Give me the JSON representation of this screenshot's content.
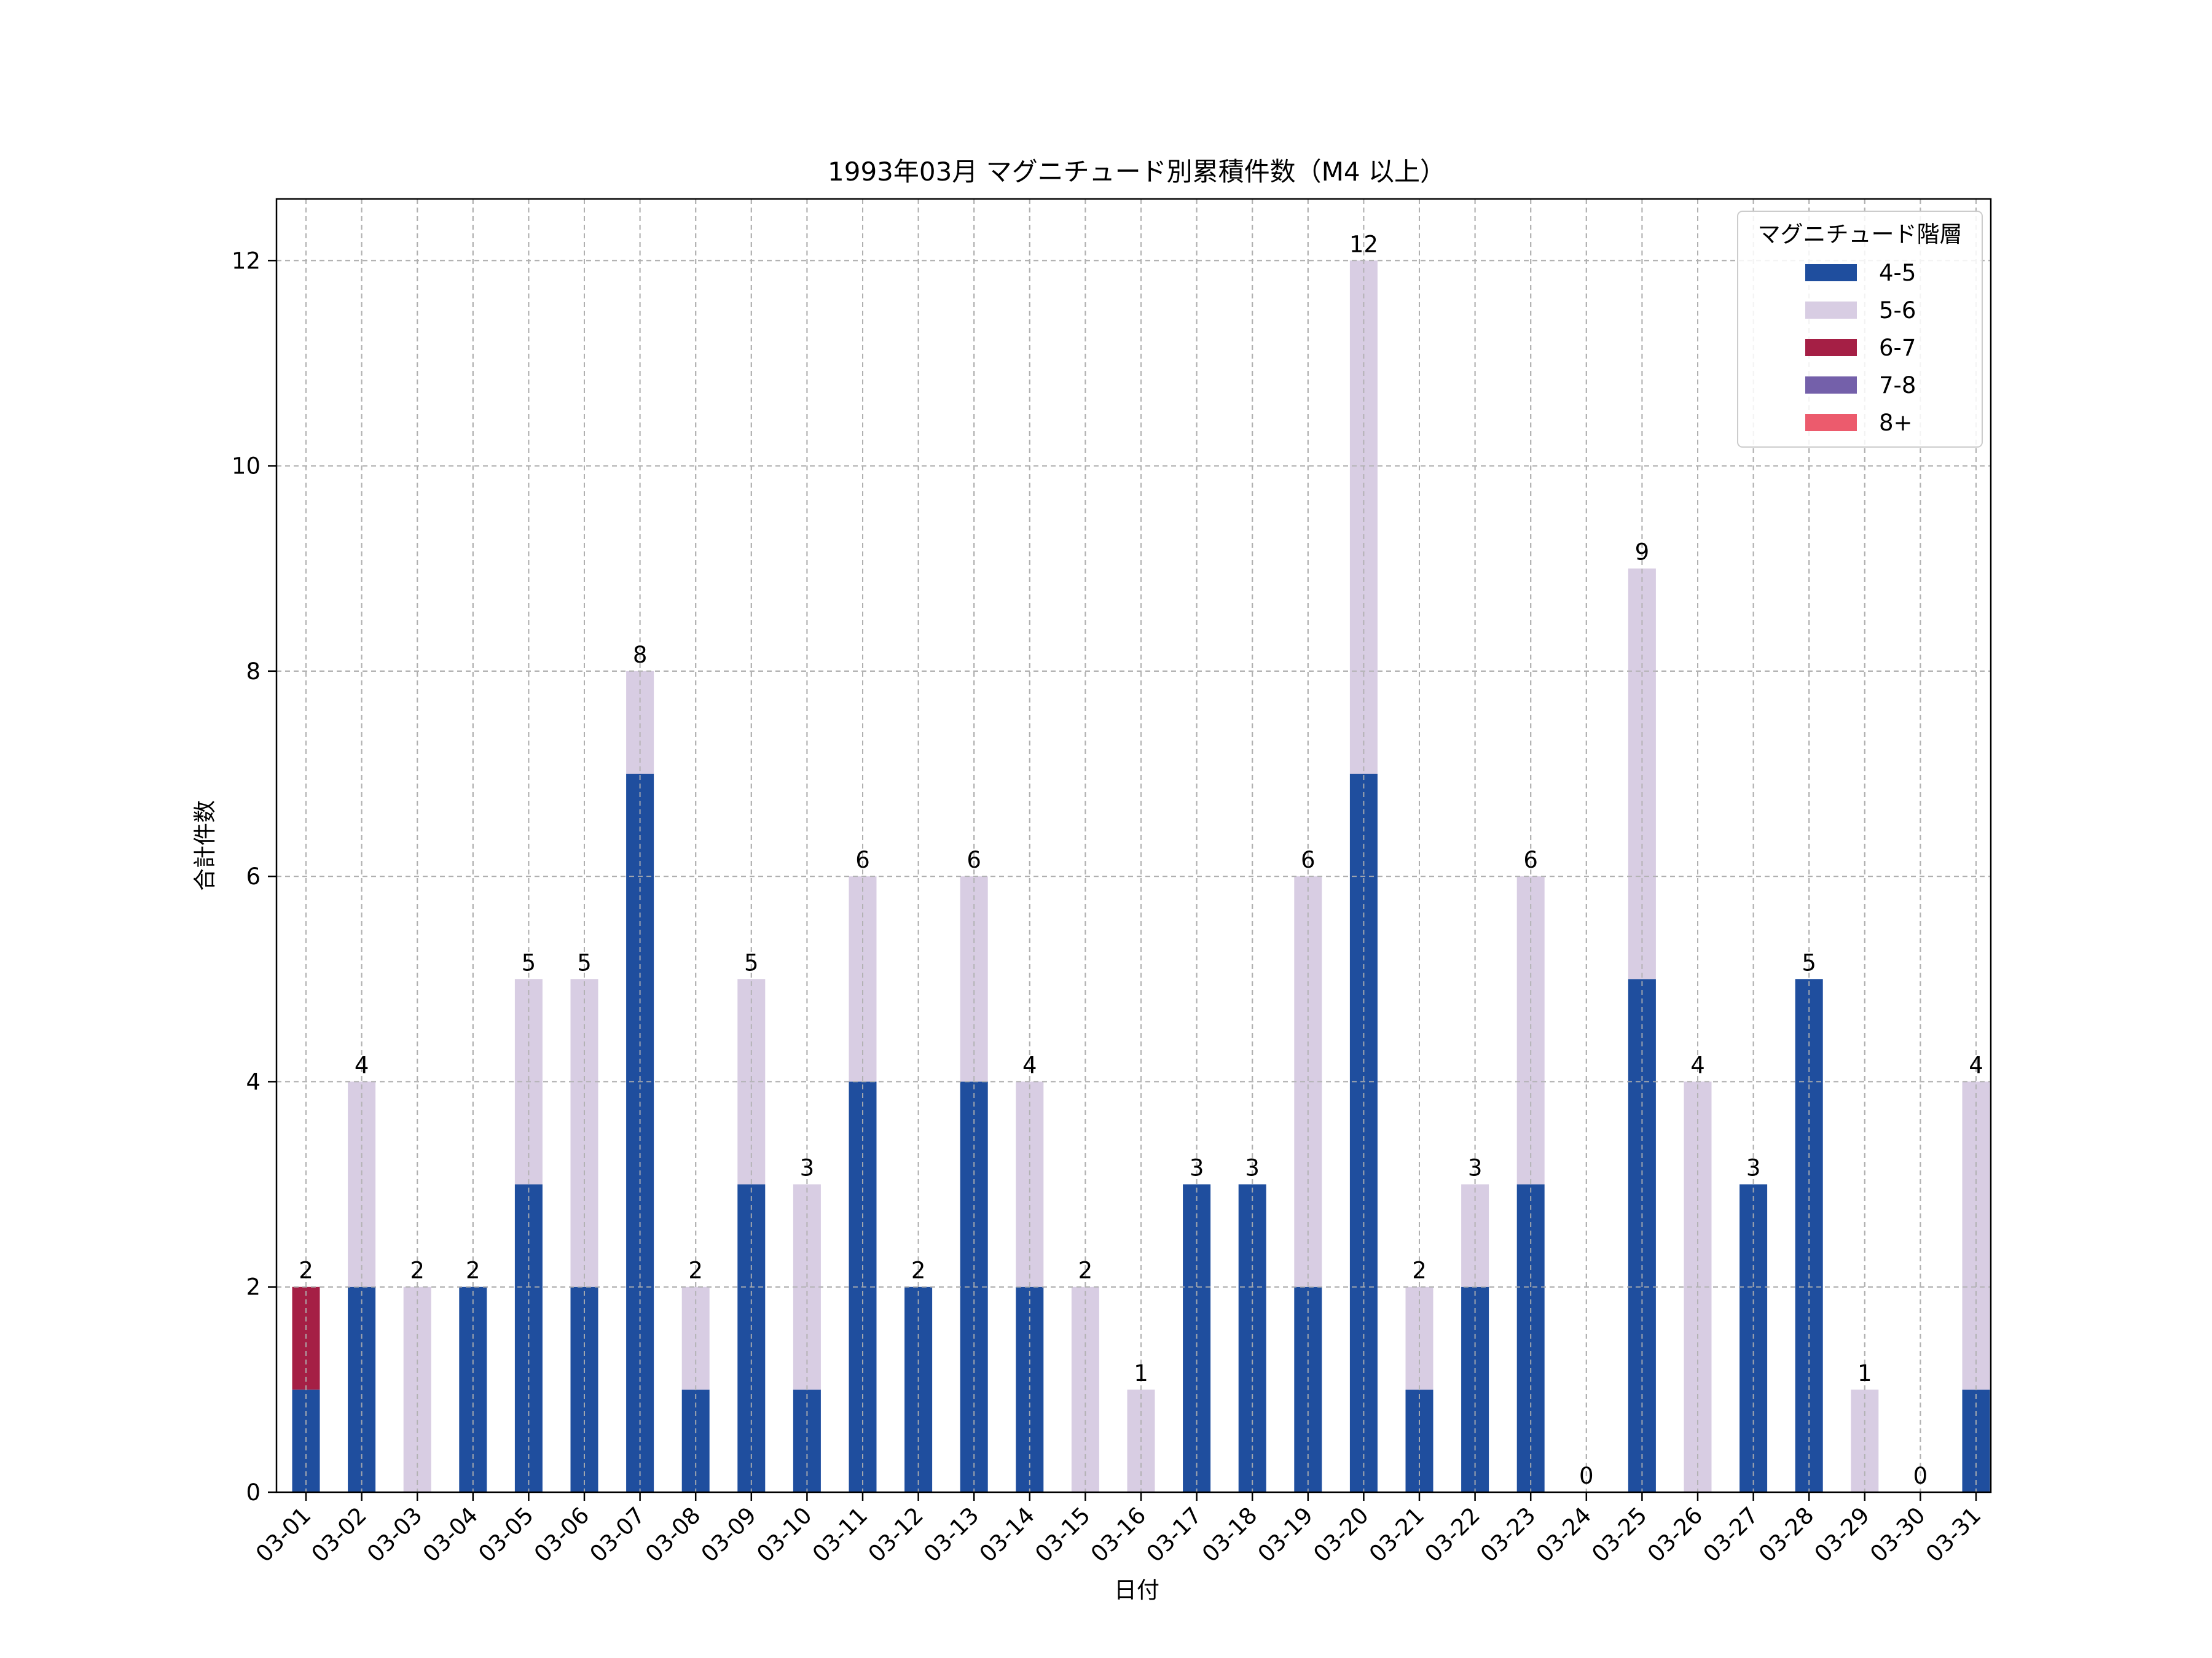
{
  "chart_data": {
    "type": "bar",
    "stacked": true,
    "title": "1993年03月 マグニチュード別累積件数（M4 以上）",
    "xlabel": "日付",
    "ylabel": "合計件数",
    "ylim": [
      0,
      12.6
    ],
    "yticks": [
      0,
      2,
      4,
      6,
      8,
      10,
      12
    ],
    "grid": true,
    "legend": {
      "title": "マグニチュード階層",
      "placement": "top-right"
    },
    "categories": [
      "03-01",
      "03-02",
      "03-03",
      "03-04",
      "03-05",
      "03-06",
      "03-07",
      "03-08",
      "03-09",
      "03-10",
      "03-11",
      "03-12",
      "03-13",
      "03-14",
      "03-15",
      "03-16",
      "03-17",
      "03-18",
      "03-19",
      "03-20",
      "03-21",
      "03-22",
      "03-23",
      "03-24",
      "03-25",
      "03-26",
      "03-27",
      "03-28",
      "03-29",
      "03-30",
      "03-31"
    ],
    "series": [
      {
        "name": "4-5",
        "color": "#1f4e9e",
        "values": [
          1,
          2,
          0,
          2,
          3,
          2,
          7,
          1,
          3,
          1,
          4,
          2,
          4,
          2,
          0,
          0,
          3,
          3,
          2,
          7,
          1,
          2,
          3,
          0,
          5,
          0,
          3,
          5,
          0,
          0,
          1
        ]
      },
      {
        "name": "5-6",
        "color": "#d8cde3",
        "values": [
          0,
          2,
          2,
          0,
          2,
          3,
          1,
          1,
          2,
          2,
          2,
          0,
          2,
          2,
          2,
          1,
          0,
          0,
          4,
          5,
          1,
          1,
          3,
          0,
          4,
          4,
          0,
          0,
          1,
          0,
          3
        ]
      },
      {
        "name": "6-7",
        "color": "#a51f45",
        "values": [
          1,
          0,
          0,
          0,
          0,
          0,
          0,
          0,
          0,
          0,
          0,
          0,
          0,
          0,
          0,
          0,
          0,
          0,
          0,
          0,
          0,
          0,
          0,
          0,
          0,
          0,
          0,
          0,
          0,
          0,
          0
        ]
      },
      {
        "name": "7-8",
        "color": "#7460aa",
        "values": [
          0,
          0,
          0,
          0,
          0,
          0,
          0,
          0,
          0,
          0,
          0,
          0,
          0,
          0,
          0,
          0,
          0,
          0,
          0,
          0,
          0,
          0,
          0,
          0,
          0,
          0,
          0,
          0,
          0,
          0,
          0
        ]
      },
      {
        "name": "8+",
        "color": "#ec5b6d",
        "values": [
          0,
          0,
          0,
          0,
          0,
          0,
          0,
          0,
          0,
          0,
          0,
          0,
          0,
          0,
          0,
          0,
          0,
          0,
          0,
          0,
          0,
          0,
          0,
          0,
          0,
          0,
          0,
          0,
          0,
          0,
          0
        ]
      }
    ],
    "totals": [
      2,
      4,
      2,
      2,
      5,
      5,
      8,
      2,
      5,
      3,
      6,
      2,
      6,
      4,
      2,
      1,
      3,
      3,
      6,
      12,
      2,
      3,
      6,
      0,
      9,
      4,
      3,
      5,
      1,
      0,
      4
    ]
  }
}
